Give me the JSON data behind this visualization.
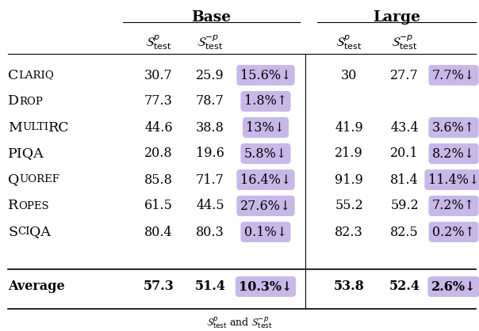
{
  "title_base": "Base",
  "title_large": "Large",
  "rows": [
    {
      "name_big": "C",
      "name_small": "LARIQ",
      "base_p": "30.7",
      "base_np": "25.9",
      "base_diff": "15.6%↓",
      "large_p": "30",
      "large_np": "27.7",
      "large_diff": "7.7%↓"
    },
    {
      "name_big": "D",
      "name_small": "ROP",
      "base_p": "77.3",
      "base_np": "78.7",
      "base_diff": "1.8%↑",
      "large_p": "",
      "large_np": "",
      "large_diff": ""
    },
    {
      "name_big": "M",
      "name_small": "ULTI",
      "name_big2": "RC",
      "base_p": "44.6",
      "base_np": "38.8",
      "base_diff": "13%↓",
      "large_p": "41.9",
      "large_np": "43.4",
      "large_diff": "3.6%↑"
    },
    {
      "name_big": "PIQA",
      "name_small": "",
      "base_p": "20.8",
      "base_np": "19.6",
      "base_diff": "5.8%↓",
      "large_p": "21.9",
      "large_np": "20.1",
      "large_diff": "8.2%↓"
    },
    {
      "name_big": "Q",
      "name_small": "UOREF",
      "base_p": "85.8",
      "base_np": "71.7",
      "base_diff": "16.4%↓",
      "large_p": "91.9",
      "large_np": "81.4",
      "large_diff": "11.4%↓"
    },
    {
      "name_big": "R",
      "name_small": "OPES",
      "base_p": "61.5",
      "base_np": "44.5",
      "base_diff": "27.6%↓",
      "large_p": "55.2",
      "large_np": "59.2",
      "large_diff": "7.2%↑"
    },
    {
      "name_big": "S",
      "name_small": "CI",
      "name_big2": "QA",
      "base_p": "80.4",
      "base_np": "80.3",
      "base_diff": "0.1%↓",
      "large_p": "82.3",
      "large_np": "82.5",
      "large_diff": "0.2%↑"
    }
  ],
  "average": {
    "base_p": "57.3",
    "base_np": "51.4",
    "base_diff": "10.3%↓",
    "large_p": "53.8",
    "large_np": "52.4",
    "large_diff": "2.6%↓"
  },
  "highlight_color": "#C8B8E8",
  "bg_color": "#ffffff"
}
